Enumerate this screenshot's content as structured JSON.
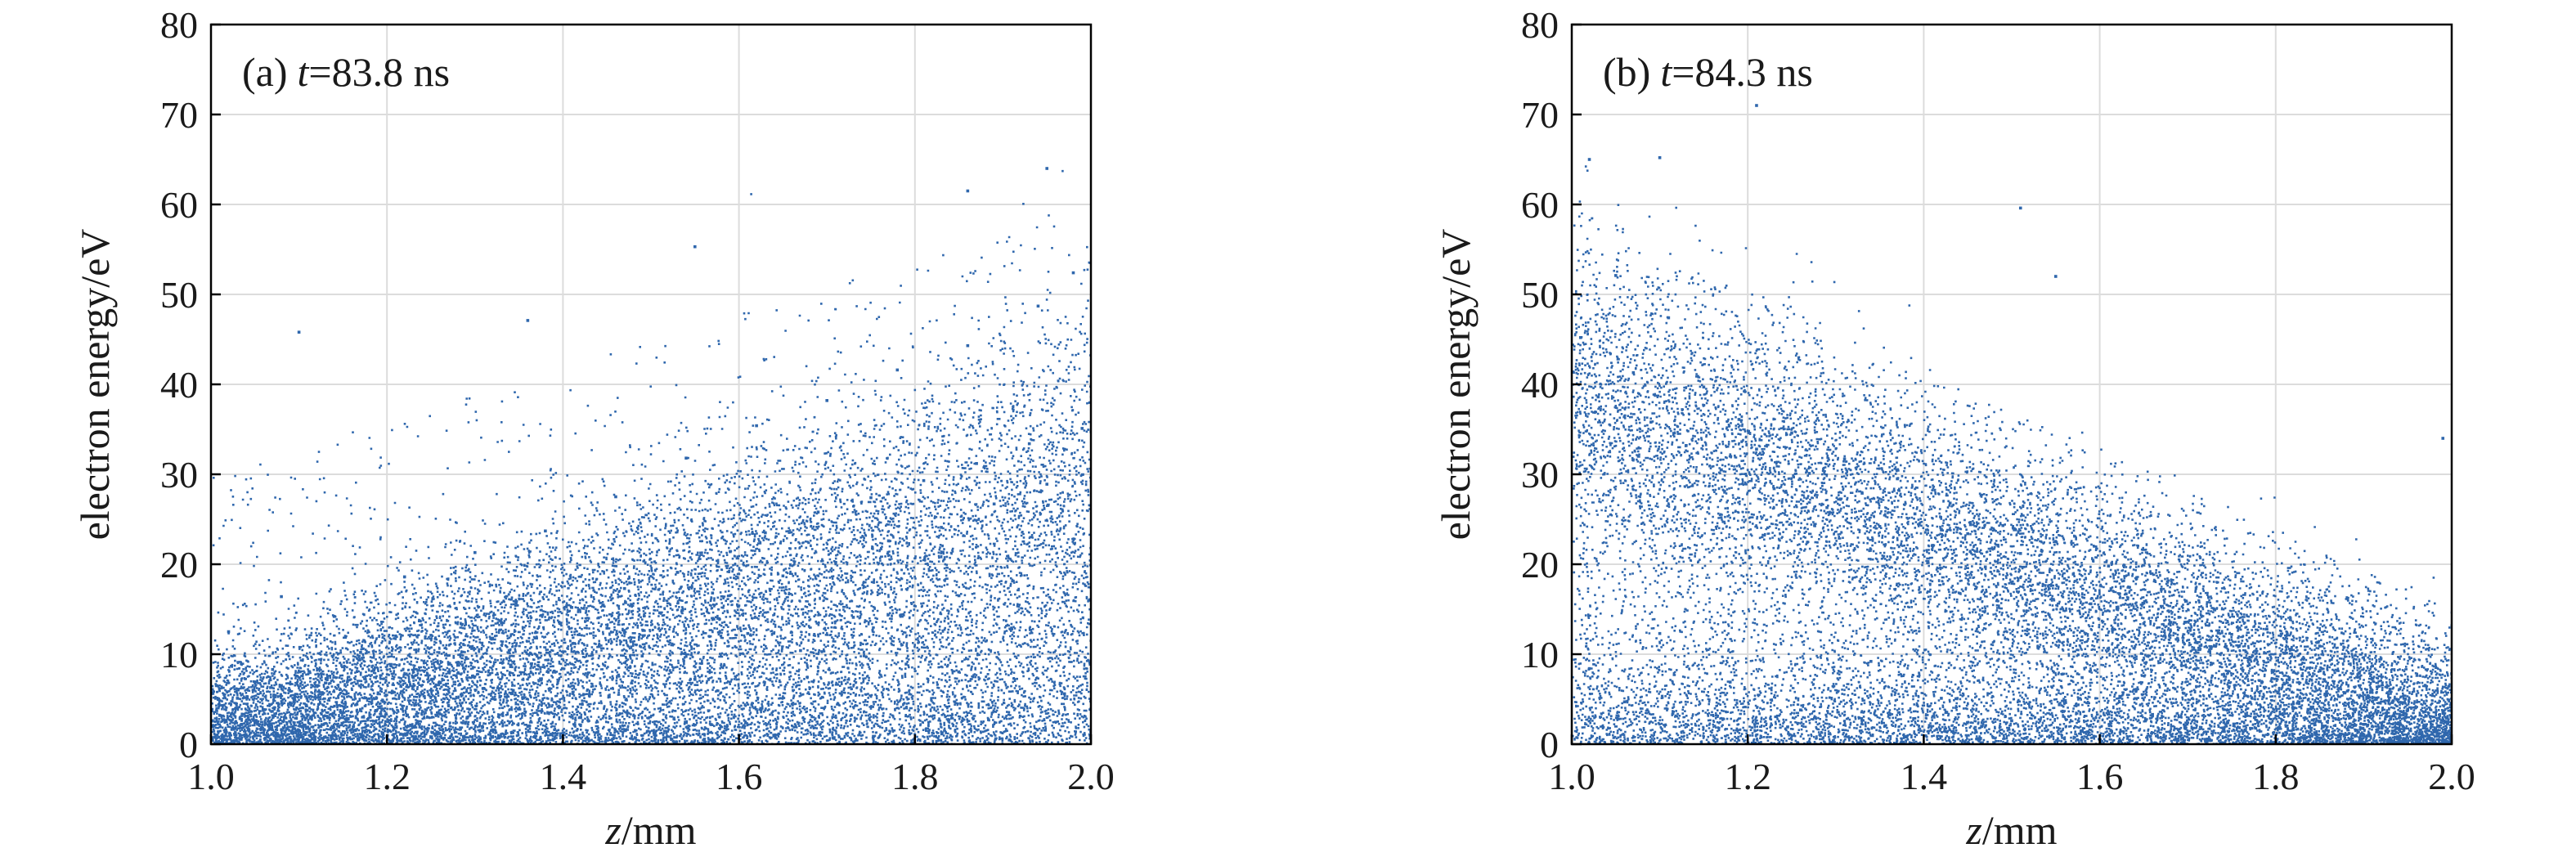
{
  "chart_data": [
    {
      "type": "scatter",
      "panel_label": "(a)",
      "time_var": "t",
      "time_value": "=83.8 ns",
      "xlabel_var": "z",
      "xlabel_unit": "/mm",
      "ylabel": "electron energy/eV",
      "xlim": [
        1.0,
        2.0
      ],
      "ylim": [
        0,
        80
      ],
      "xticks": [
        1.0,
        1.2,
        1.4,
        1.6,
        1.8,
        2.0
      ],
      "xtick_labels": [
        "1.0",
        "1.2",
        "1.4",
        "1.6",
        "1.8",
        "2.0"
      ],
      "yticks": [
        0,
        10,
        20,
        30,
        40,
        50,
        60,
        70,
        80
      ],
      "ytick_labels": [
        "0",
        "10",
        "20",
        "30",
        "40",
        "50",
        "60",
        "70",
        "80"
      ],
      "grid": true,
      "marker_color": "#2f67ad",
      "points": [
        [
          1.01,
          3.2
        ],
        [
          1.03,
          5.1
        ],
        [
          1.05,
          2.4
        ],
        [
          1.07,
          8.3
        ],
        [
          1.09,
          4.6
        ],
        [
          1.11,
          1.9
        ],
        [
          1.13,
          6.8
        ],
        [
          1.15,
          3.5
        ],
        [
          1.17,
          10.2
        ],
        [
          1.19,
          5.7
        ],
        [
          1.21,
          2.8
        ],
        [
          1.23,
          7.4
        ],
        [
          1.25,
          12.1
        ],
        [
          1.27,
          4.3
        ],
        [
          1.29,
          9.6
        ],
        [
          1.31,
          6.2
        ],
        [
          1.33,
          13.5
        ],
        [
          1.35,
          3.9
        ],
        [
          1.37,
          11.8
        ],
        [
          1.39,
          8.1
        ],
        [
          1.41,
          15.2
        ],
        [
          1.43,
          5.4
        ],
        [
          1.45,
          12.9
        ],
        [
          1.47,
          17.3
        ],
        [
          1.49,
          9.8
        ],
        [
          1.51,
          14.6
        ],
        [
          1.53,
          19.1
        ],
        [
          1.55,
          7.2
        ],
        [
          1.57,
          16.8
        ],
        [
          1.59,
          21.4
        ],
        [
          1.61,
          12.3
        ],
        [
          1.63,
          23.5
        ],
        [
          1.65,
          18.7
        ],
        [
          1.67,
          10.4
        ],
        [
          1.69,
          25.8
        ],
        [
          1.71,
          20.2
        ],
        [
          1.73,
          14.1
        ],
        [
          1.75,
          27.4
        ],
        [
          1.77,
          22.6
        ],
        [
          1.79,
          8.9
        ],
        [
          1.81,
          29.3
        ],
        [
          1.83,
          24.1
        ],
        [
          1.85,
          16.5
        ],
        [
          1.87,
          31.2
        ],
        [
          1.89,
          26.7
        ],
        [
          1.91,
          12.8
        ],
        [
          1.93,
          33.4
        ],
        [
          1.95,
          28.9
        ],
        [
          1.97,
          5.6
        ],
        [
          1.99,
          35.1
        ],
        [
          1.02,
          12.5
        ],
        [
          1.08,
          16.4
        ],
        [
          1.14,
          14.2
        ],
        [
          1.22,
          18.6
        ],
        [
          1.3,
          21.3
        ],
        [
          1.38,
          23.7
        ],
        [
          1.46,
          27.5
        ],
        [
          1.54,
          31.8
        ],
        [
          1.62,
          35.4
        ],
        [
          1.7,
          38.2
        ],
        [
          1.78,
          41.6
        ],
        [
          1.86,
          44.3
        ],
        [
          1.94,
          48.7
        ],
        [
          1.98,
          52.4
        ],
        [
          1.1,
          45.8
        ],
        [
          1.36,
          47.1
        ],
        [
          1.55,
          55.3
        ],
        [
          1.86,
          61.5
        ],
        [
          1.95,
          64.0
        ],
        [
          1.2,
          0.8
        ]
      ]
    },
    {
      "type": "scatter",
      "panel_label": "(b)",
      "time_var": "t",
      "time_value": "=84.3 ns",
      "xlabel_var": "z",
      "xlabel_unit": "/mm",
      "ylabel": "electron energy/eV",
      "xlim": [
        1.0,
        2.0
      ],
      "ylim": [
        0,
        80
      ],
      "xticks": [
        1.0,
        1.2,
        1.4,
        1.6,
        1.8,
        2.0
      ],
      "xtick_labels": [
        "1.0",
        "1.2",
        "1.4",
        "1.6",
        "1.8",
        "2.0"
      ],
      "yticks": [
        0,
        10,
        20,
        30,
        40,
        50,
        60,
        70,
        80
      ],
      "ytick_labels": [
        "0",
        "10",
        "20",
        "30",
        "40",
        "50",
        "60",
        "70",
        "80"
      ],
      "grid": true,
      "marker_color": "#2f67ad",
      "points": [
        [
          1.01,
          45.2
        ],
        [
          1.03,
          38.6
        ],
        [
          1.05,
          52.1
        ],
        [
          1.07,
          41.3
        ],
        [
          1.09,
          35.8
        ],
        [
          1.11,
          47.4
        ],
        [
          1.13,
          33.2
        ],
        [
          1.15,
          39.7
        ],
        [
          1.17,
          30.5
        ],
        [
          1.19,
          36.1
        ],
        [
          1.21,
          32.8
        ],
        [
          1.23,
          28.4
        ],
        [
          1.25,
          34.6
        ],
        [
          1.27,
          30.1
        ],
        [
          1.29,
          26.3
        ],
        [
          1.31,
          31.7
        ],
        [
          1.33,
          27.9
        ],
        [
          1.35,
          24.2
        ],
        [
          1.37,
          29.5
        ],
        [
          1.39,
          25.6
        ],
        [
          1.41,
          22.1
        ],
        [
          1.43,
          26.8
        ],
        [
          1.45,
          23.4
        ],
        [
          1.47,
          19.7
        ],
        [
          1.49,
          24.3
        ],
        [
          1.51,
          21.2
        ],
        [
          1.53,
          17.8
        ],
        [
          1.55,
          22.5
        ],
        [
          1.57,
          18.9
        ],
        [
          1.59,
          15.6
        ],
        [
          1.61,
          19.8
        ],
        [
          1.63,
          16.7
        ],
        [
          1.65,
          13.4
        ],
        [
          1.67,
          17.2
        ],
        [
          1.69,
          14.1
        ],
        [
          1.71,
          11.3
        ],
        [
          1.73,
          15.0
        ],
        [
          1.75,
          12.2
        ],
        [
          1.77,
          9.4
        ],
        [
          1.79,
          12.8
        ],
        [
          1.81,
          10.1
        ],
        [
          1.83,
          7.6
        ],
        [
          1.85,
          10.9
        ],
        [
          1.87,
          8.2
        ],
        [
          1.89,
          5.8
        ],
        [
          1.91,
          8.7
        ],
        [
          1.93,
          6.1
        ],
        [
          1.95,
          3.9
        ],
        [
          1.97,
          6.5
        ],
        [
          1.99,
          2.7
        ],
        [
          1.02,
          8.4
        ],
        [
          1.06,
          4.7
        ],
        [
          1.1,
          12.3
        ],
        [
          1.18,
          6.9
        ],
        [
          1.26,
          3.8
        ],
        [
          1.34,
          9.2
        ],
        [
          1.42,
          5.1
        ],
        [
          1.5,
          2.6
        ],
        [
          1.58,
          7.4
        ],
        [
          1.66,
          3.3
        ],
        [
          1.74,
          1.8
        ],
        [
          1.82,
          4.5
        ],
        [
          1.9,
          2.2
        ],
        [
          1.98,
          1.4
        ],
        [
          1.02,
          65.0
        ],
        [
          1.1,
          65.2
        ],
        [
          1.21,
          71.0
        ],
        [
          1.51,
          59.6
        ],
        [
          1.55,
          52.0
        ],
        [
          1.99,
          34.0
        ]
      ]
    }
  ]
}
